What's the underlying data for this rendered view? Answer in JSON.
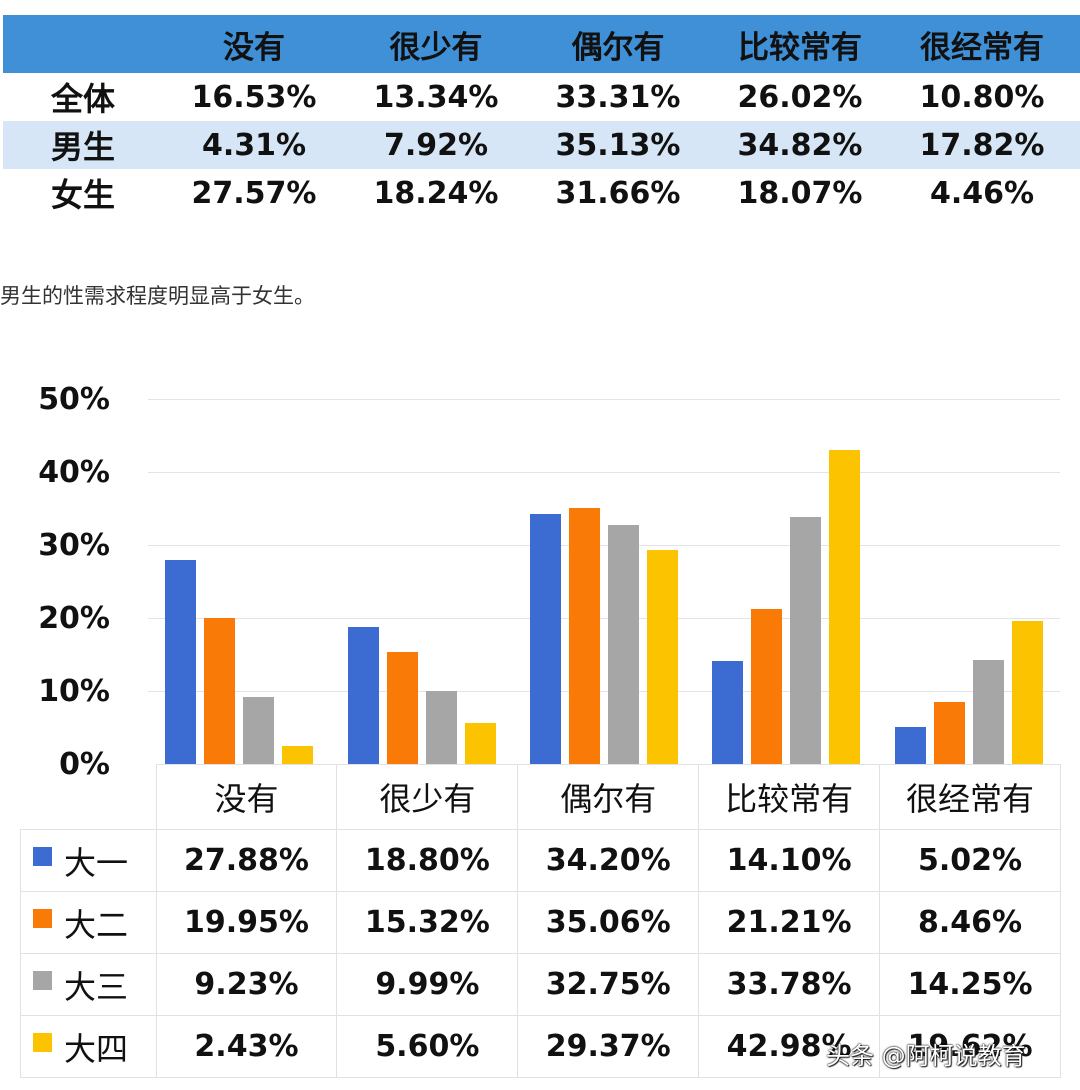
{
  "summary_table": {
    "columns": [
      "没有",
      "很少有",
      "偶尔有",
      "比较常有",
      "很经常有"
    ],
    "rows": [
      {
        "label": "全体",
        "values": [
          "16.53%",
          "13.34%",
          "33.31%",
          "26.02%",
          "10.80%"
        ]
      },
      {
        "label": "男生",
        "values": [
          "4.31%",
          "7.92%",
          "35.13%",
          "34.82%",
          "17.82%"
        ]
      },
      {
        "label": "女生",
        "values": [
          "27.57%",
          "18.24%",
          "31.66%",
          "18.07%",
          "4.46%"
        ]
      }
    ],
    "header_color": "#3f90d6",
    "alt_row_color": "#d7e6f6"
  },
  "note": "男生的性需求程度明显高于女生。",
  "chart_data": {
    "type": "bar",
    "title": "",
    "xlabel": "",
    "ylabel": "",
    "categories": [
      "没有",
      "很少有",
      "偶尔有",
      "比较常有",
      "很经常有"
    ],
    "yticks": [
      "50%",
      "40%",
      "30%",
      "20%",
      "10%",
      "0%"
    ],
    "ylim": [
      0,
      50
    ],
    "grid": true,
    "legend_position": "data-table",
    "series": [
      {
        "name": "大一",
        "color": "#3c6bd1",
        "values": [
          27.88,
          18.8,
          34.2,
          14.1,
          5.02
        ],
        "labels": [
          "27.88%",
          "18.80%",
          "34.20%",
          "14.10%",
          "5.02%"
        ]
      },
      {
        "name": "大二",
        "color": "#f97a07",
        "values": [
          19.95,
          15.32,
          35.06,
          21.21,
          8.46
        ],
        "labels": [
          "19.95%",
          "15.32%",
          "35.06%",
          "21.21%",
          "8.46%"
        ]
      },
      {
        "name": "大三",
        "color": "#a6a6a6",
        "values": [
          9.23,
          9.99,
          32.75,
          33.78,
          14.25
        ],
        "labels": [
          "9.23%",
          "9.99%",
          "32.75%",
          "33.78%",
          "14.25%"
        ]
      },
      {
        "name": "大四",
        "color": "#fcc400",
        "values": [
          2.43,
          5.6,
          29.37,
          42.98,
          19.62
        ],
        "labels": [
          "2.43%",
          "5.60%",
          "29.37%",
          "42.98%",
          "19.62%"
        ]
      }
    ]
  },
  "watermark": "头条 @阿柯说教育"
}
